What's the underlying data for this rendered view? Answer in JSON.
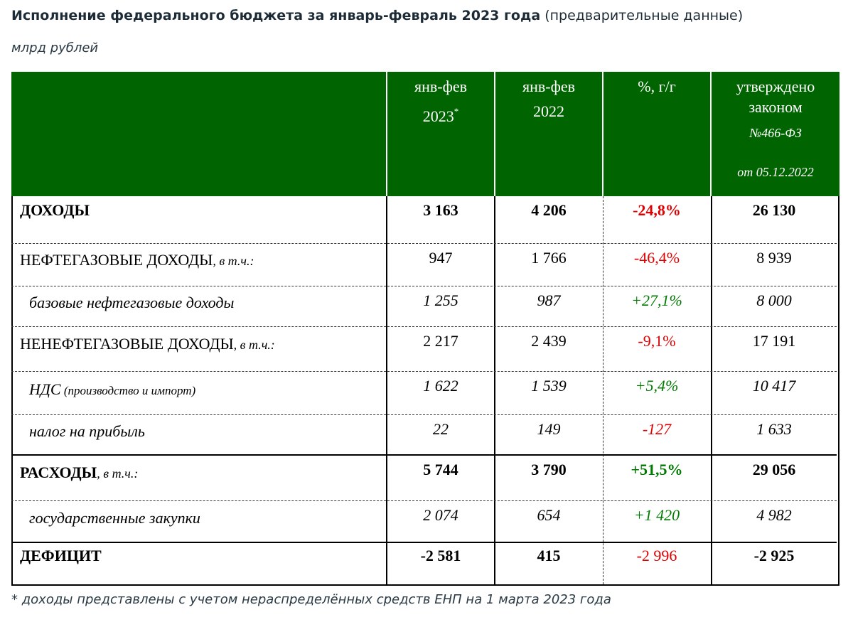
{
  "title": {
    "bold": "Исполнение федерального бюджета за январь-февраль 2023 года",
    "normal": " (предварительные данные)"
  },
  "units": "млрд рублей",
  "header": {
    "col1_line1": "янв-фев",
    "col1_line2": "2023",
    "col1_mark": "*",
    "col2_line1": "янв-фев",
    "col2_line2": "2022",
    "col3": "%, г/г",
    "col4_line1": "утверждено",
    "col4_line2": "законом",
    "col4_line3": "№466-ФЗ",
    "col4_line4": "от 05.12.2022"
  },
  "rows": [
    {
      "name": "ДОХОДЫ",
      "suffix": "",
      "v2023": "3 163",
      "v2022": "4 206",
      "pct": "-24,8%",
      "law": "26 130"
    },
    {
      "name": "НЕФТЕГАЗОВЫЕ ДОХОДЫ",
      "suffix": ", в т.ч.:",
      "v2023": "947",
      "v2022": "1 766",
      "pct": "-46,4%",
      "law": "8 939"
    },
    {
      "name": "базовые нефтегазовые доходы",
      "suffix": "",
      "v2023": "1 255",
      "v2022": "987",
      "pct": "+27,1%",
      "law": "8 000"
    },
    {
      "name": "НЕНЕФТЕГАЗОВЫЕ ДОХОДЫ",
      "suffix": ", в т.ч.:",
      "v2023": "2 217",
      "v2022": "2 439",
      "pct": "-9,1%",
      "law": "17 191"
    },
    {
      "name": "НДС",
      "suffix": " (производство и импорт)",
      "v2023": "1 622",
      "v2022": "1 539",
      "pct": "+5,4%",
      "law": "10 417"
    },
    {
      "name": "налог на прибыль",
      "suffix": "",
      "v2023": "22",
      "v2022": "149",
      "pct": "-127",
      "law": "1 633"
    },
    {
      "name": "РАСХОДЫ",
      "suffix": ", в т.ч.:",
      "v2023": "5 744",
      "v2022": "3 790",
      "pct": "+51,5%",
      "law": "29 056"
    },
    {
      "name": "государственные закупки",
      "suffix": "",
      "v2023": "2 074",
      "v2022": "654",
      "pct": "+1 420",
      "law": "4 982"
    },
    {
      "name": "ДЕФИЦИТ",
      "suffix": "",
      "v2023": "-2 581",
      "v2022": "415",
      "pct": "-2 996",
      "law": "-2 925"
    }
  ],
  "colors": {
    "header_bg": "#006400",
    "negative": "#e00000",
    "positive": "#007a00"
  },
  "footnote": "* доходы представлены с учетом нераспределённых средств ЕНП на 1 марта 2023 года"
}
